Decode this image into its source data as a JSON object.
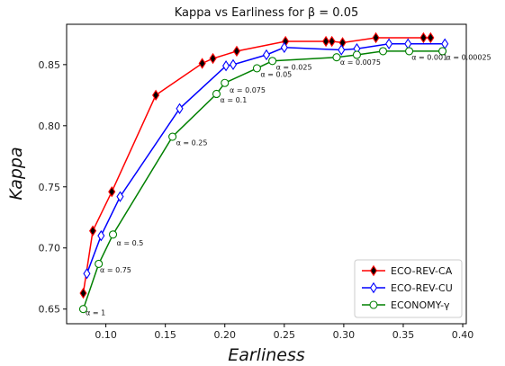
{
  "chart_data": {
    "type": "line",
    "title": "Kappa vs Earliness for β = 0.05",
    "xlabel": "Earliness",
    "ylabel": "Kappa",
    "xlim": [
      0.067,
      0.403
    ],
    "ylim": [
      0.638,
      0.883
    ],
    "xticks": [
      0.1,
      0.15,
      0.2,
      0.25,
      0.3,
      0.35,
      0.4
    ],
    "xtick_labels": [
      "0.10",
      "0.15",
      "0.20",
      "0.25",
      "0.30",
      "0.35",
      "0.40"
    ],
    "yticks": [
      0.65,
      0.7,
      0.75,
      0.8,
      0.85
    ],
    "ytick_labels": [
      "0.65",
      "0.70",
      "0.75",
      "0.80",
      "0.85"
    ],
    "grid": false,
    "legend_position": "lower-right",
    "series": [
      {
        "name": "ECO-REV-CA",
        "color": "#ff0000",
        "marker": "thin-diamond-filled",
        "marker_face": "#000000",
        "x": [
          0.081,
          0.089,
          0.105,
          0.142,
          0.181,
          0.19,
          0.21,
          0.251,
          0.285,
          0.29,
          0.299,
          0.327,
          0.367,
          0.373
        ],
        "y": [
          0.663,
          0.714,
          0.746,
          0.825,
          0.851,
          0.855,
          0.861,
          0.869,
          0.869,
          0.869,
          0.868,
          0.872,
          0.872,
          0.872
        ]
      },
      {
        "name": "ECO-REV-CU",
        "color": "#0000ff",
        "marker": "thin-diamond-open",
        "marker_face": "#ffffff",
        "x": [
          0.084,
          0.096,
          0.112,
          0.162,
          0.201,
          0.207,
          0.235,
          0.25,
          0.298,
          0.311,
          0.338,
          0.354,
          0.385
        ],
        "y": [
          0.679,
          0.71,
          0.742,
          0.814,
          0.849,
          0.85,
          0.858,
          0.864,
          0.862,
          0.863,
          0.867,
          0.867,
          0.867
        ]
      },
      {
        "name": "ECONOMY-γ",
        "color": "#008000",
        "marker": "circle-open",
        "marker_face": "#ffffff",
        "x": [
          0.081,
          0.094,
          0.106,
          0.156,
          0.193,
          0.2,
          0.227,
          0.24,
          0.294,
          0.311,
          0.333,
          0.355,
          0.383
        ],
        "y": [
          0.65,
          0.687,
          0.711,
          0.791,
          0.826,
          0.835,
          0.847,
          0.853,
          0.856,
          0.858,
          0.861,
          0.861,
          0.861
        ]
      }
    ],
    "annotations": [
      {
        "text": "α = 1",
        "x": 0.083,
        "y": 0.645
      },
      {
        "text": "α = 0.75",
        "x": 0.095,
        "y": 0.68
      },
      {
        "text": "α = 0.5",
        "x": 0.109,
        "y": 0.702
      },
      {
        "text": "α = 0.25",
        "x": 0.159,
        "y": 0.784
      },
      {
        "text": "α = 0.1",
        "x": 0.196,
        "y": 0.819
      },
      {
        "text": "α = 0.075",
        "x": 0.204,
        "y": 0.827
      },
      {
        "text": "α = 0.05",
        "x": 0.23,
        "y": 0.84
      },
      {
        "text": "α = 0.025",
        "x": 0.243,
        "y": 0.846
      },
      {
        "text": "α = 0.0075",
        "x": 0.297,
        "y": 0.85
      },
      {
        "text": "α = 0.001",
        "x": 0.357,
        "y": 0.854
      },
      {
        "text": "α = 0.00025",
        "x": 0.386,
        "y": 0.854
      }
    ]
  }
}
